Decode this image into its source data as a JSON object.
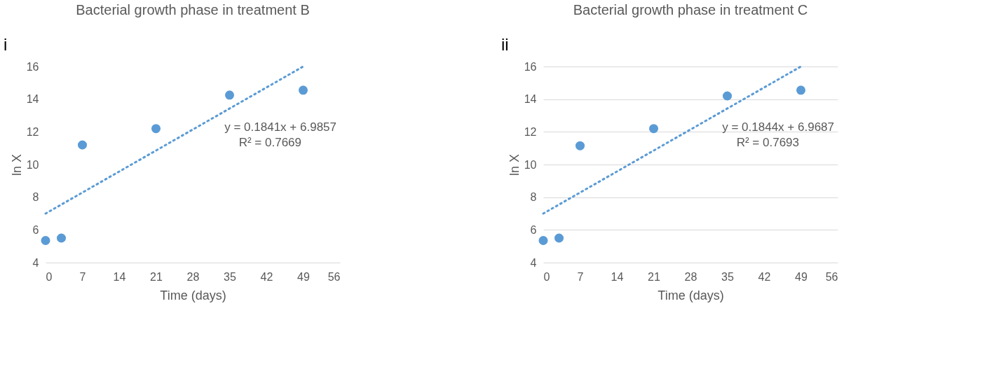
{
  "chart_data": [
    {
      "type": "scatter",
      "title": "Bacterial growth phase in treatment B",
      "xlabel": "Time (days)",
      "ylabel": "ln X",
      "xlim": [
        0,
        56
      ],
      "xticks": [
        0,
        7,
        14,
        21,
        28,
        35,
        42,
        49,
        56
      ],
      "ylim": [
        4,
        16
      ],
      "yticks": [
        4,
        6,
        8,
        10,
        12,
        14,
        16
      ],
      "grid": false,
      "annotations": [
        "i",
        "y = 0.1841x + 6.9857",
        "R² = 0.7669"
      ],
      "series": [
        {
          "color": "#5b9bd5",
          "marker": "circle",
          "x": [
            0,
            3,
            7,
            21,
            35,
            49
          ],
          "values": [
            5.35,
            5.5,
            11.2,
            12.2,
            14.25,
            14.55
          ]
        },
        {
          "type": "line",
          "line_style": "dotted",
          "color": "#5b9bd5",
          "x": [
            0,
            49
          ],
          "values": [
            7.0,
            16.0
          ]
        }
      ]
    },
    {
      "type": "scatter",
      "title": "Bacterial growth phase in treatment C",
      "xlabel": "Time (days)",
      "ylabel": "ln X",
      "xlim": [
        0,
        56
      ],
      "xticks": [
        0,
        7,
        14,
        21,
        28,
        35,
        42,
        49,
        56
      ],
      "ylim": [
        4,
        16
      ],
      "yticks": [
        4,
        6,
        8,
        10,
        12,
        14,
        16
      ],
      "grid": "y",
      "annotations": [
        "ii",
        "y = 0.1844x + 6.9687",
        "R² = 0.7693"
      ],
      "series": [
        {
          "color": "#5b9bd5",
          "marker": "circle",
          "x": [
            0,
            3,
            7,
            21,
            35,
            49
          ],
          "values": [
            5.35,
            5.5,
            11.15,
            12.2,
            14.2,
            14.55
          ]
        },
        {
          "type": "line",
          "line_style": "dotted",
          "color": "#5b9bd5",
          "x": [
            0,
            49
          ],
          "values": [
            7.0,
            16.0
          ]
        }
      ]
    }
  ]
}
